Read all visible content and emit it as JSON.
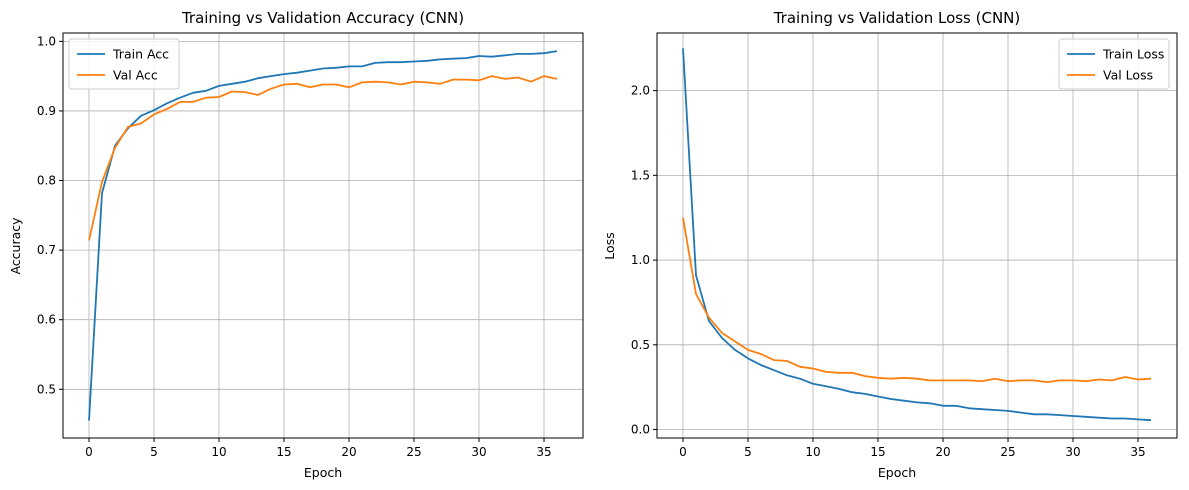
{
  "chart_data": [
    {
      "type": "line",
      "title": "Training vs Validation Accuracy (CNN)",
      "xlabel": "Epoch",
      "ylabel": "Accuracy",
      "xlim": [
        -2,
        38
      ],
      "ylim": [
        0.43,
        1.012
      ],
      "xticks": [
        0,
        5,
        10,
        15,
        20,
        25,
        30,
        35
      ],
      "yticks": [
        0.5,
        0.6,
        0.7,
        0.8,
        0.9,
        1.0
      ],
      "ytick_labels": [
        "0.5",
        "0.6",
        "0.7",
        "0.8",
        "0.9",
        "1.0"
      ],
      "grid": true,
      "legend": "upper left",
      "x": [
        0,
        1,
        2,
        3,
        4,
        5,
        6,
        7,
        8,
        9,
        10,
        11,
        12,
        13,
        14,
        15,
        16,
        17,
        18,
        19,
        20,
        21,
        22,
        23,
        24,
        25,
        26,
        27,
        28,
        29,
        30,
        31,
        32,
        33,
        34,
        35,
        36
      ],
      "series": [
        {
          "name": "Train Acc",
          "color": "#1f77b4",
          "values": [
            0.455,
            0.782,
            0.85,
            0.875,
            0.893,
            0.901,
            0.911,
            0.919,
            0.926,
            0.929,
            0.936,
            0.939,
            0.942,
            0.947,
            0.95,
            0.953,
            0.955,
            0.958,
            0.961,
            0.962,
            0.964,
            0.964,
            0.969,
            0.97,
            0.97,
            0.971,
            0.972,
            0.974,
            0.975,
            0.976,
            0.979,
            0.978,
            0.98,
            0.982,
            0.982,
            0.983,
            0.986
          ]
        },
        {
          "name": "Val Acc",
          "color": "#ff7f0e",
          "values": [
            0.714,
            0.798,
            0.847,
            0.877,
            0.882,
            0.895,
            0.903,
            0.913,
            0.913,
            0.919,
            0.92,
            0.928,
            0.927,
            0.923,
            0.932,
            0.938,
            0.939,
            0.934,
            0.938,
            0.938,
            0.934,
            0.941,
            0.942,
            0.941,
            0.938,
            0.942,
            0.941,
            0.939,
            0.945,
            0.945,
            0.944,
            0.95,
            0.946,
            0.948,
            0.942,
            0.95,
            0.946
          ]
        }
      ]
    },
    {
      "type": "line",
      "title": "Training vs Validation Loss (CNN)",
      "xlabel": "Epoch",
      "ylabel": "Loss",
      "xlim": [
        -2,
        38
      ],
      "ylim": [
        -0.05,
        2.34
      ],
      "xticks": [
        0,
        5,
        10,
        15,
        20,
        25,
        30,
        35
      ],
      "yticks": [
        0.0,
        0.5,
        1.0,
        1.5,
        2.0
      ],
      "ytick_labels": [
        "0.0",
        "0.5",
        "1.0",
        "1.5",
        "2.0"
      ],
      "grid": true,
      "legend": "upper right",
      "x": [
        0,
        1,
        2,
        3,
        4,
        5,
        6,
        7,
        8,
        9,
        10,
        11,
        12,
        13,
        14,
        15,
        16,
        17,
        18,
        19,
        20,
        21,
        22,
        23,
        24,
        25,
        26,
        27,
        28,
        29,
        30,
        31,
        32,
        33,
        34,
        35,
        36
      ],
      "series": [
        {
          "name": "Train Loss",
          "color": "#1f77b4",
          "values": [
            2.25,
            0.91,
            0.64,
            0.54,
            0.47,
            0.42,
            0.38,
            0.35,
            0.32,
            0.3,
            0.27,
            0.255,
            0.24,
            0.22,
            0.21,
            0.195,
            0.18,
            0.17,
            0.16,
            0.155,
            0.14,
            0.14,
            0.125,
            0.12,
            0.115,
            0.11,
            0.1,
            0.09,
            0.09,
            0.085,
            0.08,
            0.075,
            0.07,
            0.065,
            0.065,
            0.06,
            0.055
          ]
        },
        {
          "name": "Val Loss",
          "color": "#ff7f0e",
          "values": [
            1.25,
            0.8,
            0.66,
            0.57,
            0.52,
            0.47,
            0.445,
            0.41,
            0.405,
            0.37,
            0.36,
            0.34,
            0.335,
            0.335,
            0.315,
            0.305,
            0.3,
            0.305,
            0.3,
            0.29,
            0.29,
            0.29,
            0.29,
            0.285,
            0.3,
            0.285,
            0.29,
            0.29,
            0.28,
            0.29,
            0.29,
            0.285,
            0.295,
            0.29,
            0.31,
            0.295,
            0.3
          ]
        }
      ]
    }
  ]
}
